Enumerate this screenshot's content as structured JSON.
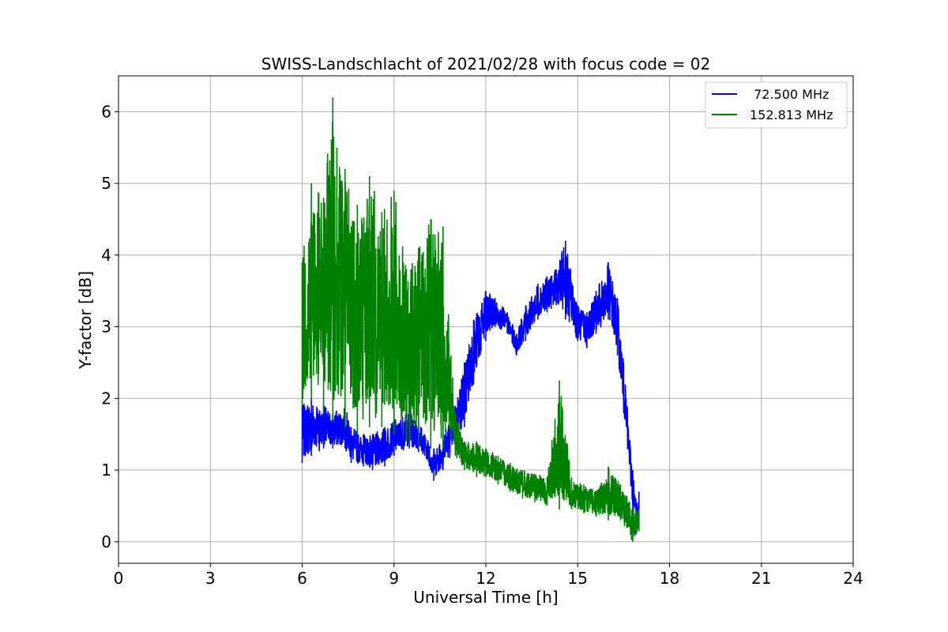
{
  "chart_data": {
    "type": "line",
    "title": "SWISS-Landschlacht of 2021/02/28 with focus code = 02",
    "xlabel": "Universal Time [h]",
    "ylabel": "Y-factor [dB]",
    "xlim": [
      0,
      24
    ],
    "ylim": [
      -0.3,
      6.5
    ],
    "xticks": [
      0,
      3,
      6,
      9,
      12,
      15,
      18,
      21,
      24
    ],
    "xtick_labels": [
      "0",
      "3",
      "6",
      "9",
      "12",
      "15",
      "18",
      "21",
      "24"
    ],
    "yticks": [
      0,
      1,
      2,
      3,
      4,
      5,
      6
    ],
    "ytick_labels": [
      "0",
      "1",
      "2",
      "3",
      "4",
      "5",
      "6"
    ],
    "grid": true,
    "legend_position": "top-right",
    "series": [
      {
        "name": " 72.500 MHz",
        "color": "#0000ff",
        "x": [
          6.0,
          6.3,
          6.7,
          7.0,
          7.4,
          7.6,
          8.0,
          8.3,
          8.7,
          9.0,
          9.5,
          9.8,
          10.0,
          10.3,
          10.6,
          11.0,
          11.3,
          11.6,
          12.0,
          12.3,
          12.7,
          13.0,
          13.3,
          13.7,
          14.0,
          14.3,
          14.6,
          15.0,
          15.3,
          15.6,
          16.0,
          16.3,
          16.5,
          16.8,
          16.9,
          17.0
        ],
        "y_low": [
          1.1,
          1.2,
          1.3,
          1.3,
          1.3,
          1.1,
          1.05,
          1.0,
          1.05,
          1.2,
          1.3,
          1.25,
          1.2,
          0.85,
          1.0,
          1.3,
          1.6,
          2.2,
          2.8,
          3.0,
          2.9,
          2.6,
          2.8,
          3.1,
          3.2,
          3.3,
          3.1,
          2.8,
          2.7,
          2.9,
          3.1,
          2.6,
          1.8,
          0.4,
          0.1,
          0.3
        ],
        "y_high": [
          1.9,
          2.0,
          1.9,
          1.8,
          1.9,
          1.6,
          1.5,
          1.5,
          1.6,
          1.7,
          1.8,
          1.7,
          1.5,
          1.3,
          1.5,
          1.9,
          2.5,
          3.1,
          3.5,
          3.4,
          3.2,
          2.9,
          3.3,
          3.6,
          3.7,
          3.8,
          4.2,
          3.3,
          3.2,
          3.5,
          3.9,
          3.4,
          2.5,
          1.0,
          0.6,
          0.7
        ]
      },
      {
        "name": "152.813 MHz",
        "color": "#008000",
        "x": [
          6.0,
          6.3,
          6.7,
          7.0,
          7.4,
          7.8,
          8.2,
          8.6,
          9.0,
          9.4,
          9.8,
          10.2,
          10.6,
          11.0,
          11.3,
          11.7,
          12.0,
          12.4,
          12.8,
          13.2,
          13.6,
          14.0,
          14.4,
          14.8,
          15.2,
          15.6,
          16.0,
          16.4,
          16.8,
          17.0
        ],
        "y_low": [
          1.9,
          2.0,
          1.8,
          1.7,
          1.6,
          1.5,
          1.6,
          1.6,
          1.5,
          1.4,
          1.3,
          1.3,
          1.3,
          1.2,
          1.0,
          0.9,
          0.9,
          0.8,
          0.7,
          0.6,
          0.55,
          0.5,
          0.45,
          0.45,
          0.4,
          0.35,
          0.3,
          0.3,
          0.0,
          0.15
        ],
        "y_high": [
          3.9,
          5.0,
          4.8,
          6.2,
          5.2,
          4.7,
          5.1,
          4.6,
          4.9,
          3.8,
          4.1,
          4.5,
          4.4,
          1.8,
          1.4,
          1.4,
          1.3,
          1.2,
          1.1,
          1.0,
          0.95,
          0.9,
          2.25,
          0.9,
          0.8,
          0.7,
          1.05,
          0.8,
          0.5,
          0.45
        ]
      }
    ]
  }
}
